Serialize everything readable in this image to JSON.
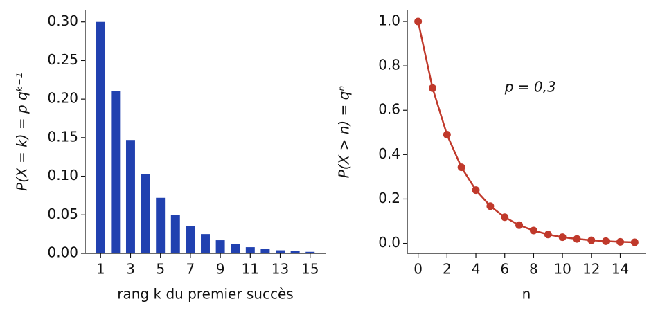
{
  "chart_data": [
    {
      "type": "bar",
      "ylabel": "P(X = k) = p qᵏ⁻¹",
      "xlabel": "rang k du premier succès",
      "color": "#2141b0",
      "x": [
        1,
        2,
        3,
        4,
        5,
        6,
        7,
        8,
        9,
        10,
        11,
        12,
        13,
        14,
        15
      ],
      "values": [
        0.3,
        0.21,
        0.147,
        0.103,
        0.072,
        0.05,
        0.035,
        0.025,
        0.017,
        0.012,
        0.008,
        0.006,
        0.004,
        0.003,
        0.002
      ],
      "xlim": [
        -0.03,
        16.03
      ],
      "xticks": [
        1,
        3,
        5,
        7,
        9,
        11,
        13,
        15
      ],
      "ylim": [
        0,
        0.315
      ],
      "yticks": [
        {
          "value": 0,
          "label": "0.00"
        },
        {
          "value": 0.05,
          "label": "0.05"
        },
        {
          "value": 0.1,
          "label": "0.10"
        },
        {
          "value": 0.15,
          "label": "0.15"
        },
        {
          "value": 0.2,
          "label": "0.20"
        },
        {
          "value": 0.25,
          "label": "0.25"
        },
        {
          "value": 0.3,
          "label": "0.30"
        }
      ]
    },
    {
      "type": "line",
      "ylabel": "P(X > n) = qⁿ",
      "xlabel": "n",
      "color": "#c0392b",
      "annotation": {
        "text": "p = 0,3",
        "x": 6,
        "y": 0.7
      },
      "x": [
        0,
        1,
        2,
        3,
        4,
        5,
        6,
        7,
        8,
        9,
        10,
        11,
        12,
        13,
        14,
        15
      ],
      "values": [
        1,
        0.7,
        0.49,
        0.343,
        0.24,
        0.168,
        0.118,
        0.082,
        0.058,
        0.04,
        0.028,
        0.02,
        0.014,
        0.01,
        0.007,
        0.005
      ],
      "xlim": [
        -0.75,
        15.75
      ],
      "xticks": [
        0,
        2,
        4,
        6,
        8,
        10,
        12,
        14
      ],
      "ylim": [
        -0.045,
        1.05
      ],
      "yticks": [
        {
          "value": 0,
          "label": "0.0"
        },
        0.2,
        0.4,
        0.6,
        0.8,
        {
          "value": 1,
          "label": "1.0"
        }
      ]
    }
  ]
}
